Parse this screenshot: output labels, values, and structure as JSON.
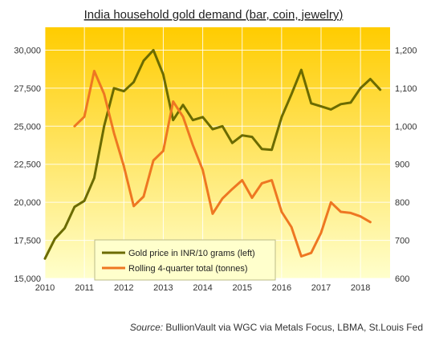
{
  "chart_data": {
    "type": "line",
    "title": "India household gold demand (bar, coin, jewelry)",
    "source_label": "Source:",
    "source_text": "BullionVault via WGC via Metals Focus, LBMA, St.Louis Fed",
    "x_ticks": [
      "2010",
      "2011",
      "2012",
      "2013",
      "2014",
      "2015",
      "2016",
      "2017",
      "2018"
    ],
    "xlim": [
      2010,
      2018.75
    ],
    "y_left": {
      "lim": [
        15000,
        31500
      ],
      "ticks": [
        15000,
        17500,
        20000,
        22500,
        25000,
        27500,
        30000
      ],
      "tick_labels": [
        "15,000",
        "17,500",
        "20,000",
        "22,500",
        "25,000",
        "27,500",
        "30,000"
      ]
    },
    "y_right": {
      "lim": [
        600,
        1260
      ],
      "ticks": [
        600,
        700,
        800,
        900,
        1000,
        1100,
        1200
      ],
      "tick_labels": [
        "600",
        "700",
        "800",
        "900",
        "1,000",
        "1,100",
        "1,200"
      ]
    },
    "legend_position": "bottom-left",
    "grid": true,
    "background_colors": [
      "#FFCC00",
      "#FFFFCC"
    ],
    "series": [
      {
        "name": "Gold price in INR/10 grams (left)",
        "axis": "left",
        "color": "#6B6B00",
        "points": [
          [
            2010.0,
            16300
          ],
          [
            2010.25,
            17600
          ],
          [
            2010.5,
            18300
          ],
          [
            2010.75,
            19700
          ],
          [
            2011.0,
            20100
          ],
          [
            2011.25,
            21600
          ],
          [
            2011.5,
            25000
          ],
          [
            2011.75,
            27500
          ],
          [
            2012.0,
            27300
          ],
          [
            2012.25,
            27900
          ],
          [
            2012.5,
            29300
          ],
          [
            2012.75,
            30000
          ],
          [
            2013.0,
            28400
          ],
          [
            2013.25,
            25400
          ],
          [
            2013.5,
            26400
          ],
          [
            2013.75,
            25400
          ],
          [
            2014.0,
            25600
          ],
          [
            2014.25,
            24800
          ],
          [
            2014.5,
            25000
          ],
          [
            2014.75,
            23900
          ],
          [
            2015.0,
            24400
          ],
          [
            2015.25,
            24300
          ],
          [
            2015.5,
            23500
          ],
          [
            2015.75,
            23450
          ],
          [
            2016.0,
            25600
          ],
          [
            2016.25,
            27100
          ],
          [
            2016.5,
            28700
          ],
          [
            2016.75,
            26500
          ],
          [
            2017.0,
            26300
          ],
          [
            2017.25,
            26100
          ],
          [
            2017.5,
            26450
          ],
          [
            2017.75,
            26550
          ],
          [
            2018.0,
            27500
          ],
          [
            2018.25,
            28100
          ],
          [
            2018.5,
            27400
          ]
        ]
      },
      {
        "name": "Rolling 4-quarter total (tonnes)",
        "axis": "right",
        "color": "#EE7722",
        "points": [
          [
            2010.75,
            1000
          ],
          [
            2011.0,
            1025
          ],
          [
            2011.25,
            1145
          ],
          [
            2011.5,
            1085
          ],
          [
            2011.75,
            982
          ],
          [
            2012.0,
            895
          ],
          [
            2012.25,
            790
          ],
          [
            2012.5,
            815
          ],
          [
            2012.75,
            910
          ],
          [
            2013.0,
            935
          ],
          [
            2013.25,
            1065
          ],
          [
            2013.5,
            1025
          ],
          [
            2013.75,
            950
          ],
          [
            2014.0,
            885
          ],
          [
            2014.25,
            770
          ],
          [
            2014.5,
            810
          ],
          [
            2014.75,
            835
          ],
          [
            2015.0,
            858
          ],
          [
            2015.25,
            812
          ],
          [
            2015.5,
            850
          ],
          [
            2015.75,
            858
          ],
          [
            2016.0,
            775
          ],
          [
            2016.25,
            735
          ],
          [
            2016.5,
            658
          ],
          [
            2016.75,
            667
          ],
          [
            2017.0,
            720
          ],
          [
            2017.25,
            800
          ],
          [
            2017.5,
            775
          ],
          [
            2017.75,
            772
          ],
          [
            2018.0,
            763
          ],
          [
            2018.25,
            748
          ]
        ]
      }
    ]
  }
}
